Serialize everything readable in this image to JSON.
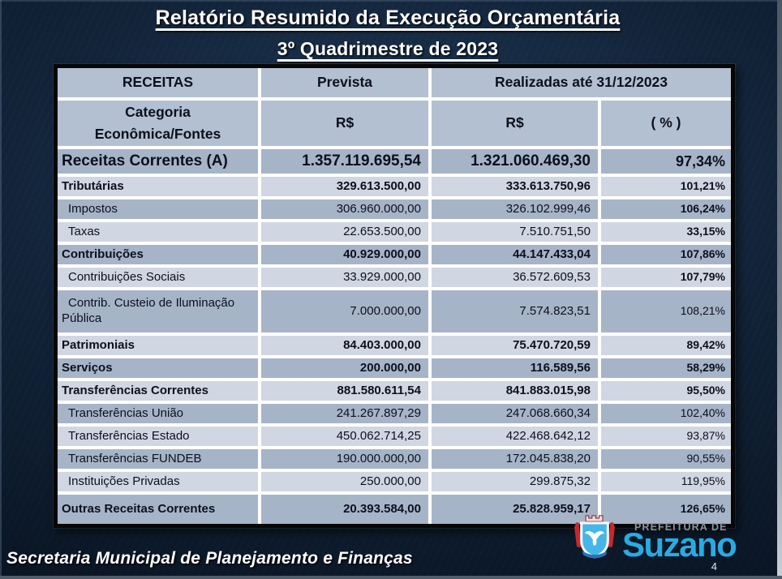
{
  "title": "Relatório Resumido da Execução Orçamentária",
  "subtitle": "3º Quadrimestre de 2023",
  "table": {
    "header": {
      "receitas": "RECEITAS",
      "prevista": "Prevista",
      "realizadas": "Realizadas até 31/12/2023",
      "categoria": "Categoria Econômica/Fontes",
      "rs_prevista": "R$",
      "rs_realizada": "R$",
      "pct": "( % )"
    },
    "rows": [
      {
        "label": "Receitas Correntes (A)",
        "prevista": "1.357.119.695,54",
        "realizada": "1.321.060.469,30",
        "pct": "97,34%",
        "style": "main",
        "pct_bold": true,
        "size": "xl"
      },
      {
        "label": "Tributárias",
        "prevista": "329.613.500,00",
        "realizada": "333.613.750,96",
        "pct": "101,21%",
        "style": "cat",
        "pct_bold": true,
        "size": "n"
      },
      {
        "label": "Impostos",
        "prevista": "306.960.000,00",
        "realizada": "326.102.999,46",
        "pct": "106,24%",
        "style": "sub",
        "pct_bold": true,
        "size": "n"
      },
      {
        "label": "Taxas",
        "prevista": "22.653.500,00",
        "realizada": "7.510.751,50",
        "pct": "33,15%",
        "style": "sub",
        "pct_bold": true,
        "size": "n"
      },
      {
        "label": "Contribuições",
        "prevista": "40.929.000,00",
        "realizada": "44.147.433,04",
        "pct": "107,86%",
        "style": "cat",
        "pct_bold": true,
        "size": "n"
      },
      {
        "label": "Contribuições Sociais",
        "prevista": "33.929.000,00",
        "realizada": "36.572.609,53",
        "pct": "107,79%",
        "style": "sub",
        "pct_bold": true,
        "size": "n"
      },
      {
        "label": "Contrib. Custeio de Iluminação Pública",
        "prevista": "7.000.000,00",
        "realizada": "7.574.823,51",
        "pct": "108,21%",
        "style": "sub",
        "pct_bold": false,
        "size": "t"
      },
      {
        "label": "Patrimoniais",
        "prevista": "84.403.000,00",
        "realizada": "75.470.720,59",
        "pct": "89,42%",
        "style": "cat",
        "pct_bold": true,
        "size": "n"
      },
      {
        "label": "Serviços",
        "prevista": "200.000,00",
        "realizada": "116.589,56",
        "pct": "58,29%",
        "style": "cat",
        "pct_bold": true,
        "size": "n"
      },
      {
        "label": "Transferências Correntes",
        "prevista": "881.580.611,54",
        "realizada": "841.883.015,98",
        "pct": "95,50%",
        "style": "cat",
        "pct_bold": true,
        "size": "n"
      },
      {
        "label": "Transferências União",
        "prevista": "241.267.897,29",
        "realizada": "247.068.660,34",
        "pct": "102,40%",
        "style": "sub",
        "pct_bold": false,
        "size": "n"
      },
      {
        "label": "Transferências Estado",
        "prevista": "450.062.714,25",
        "realizada": "422.468.642,12",
        "pct": "93,87%",
        "style": "sub",
        "pct_bold": false,
        "size": "n"
      },
      {
        "label": "Transferências FUNDEB",
        "prevista": "190.000.000,00",
        "realizada": "172.045.838,20",
        "pct": "90,55%",
        "style": "sub",
        "pct_bold": false,
        "size": "n"
      },
      {
        "label": "Instituições Privadas",
        "prevista": "250.000,00",
        "realizada": "299.875,32",
        "pct": "119,95%",
        "style": "sub",
        "pct_bold": false,
        "size": "n"
      },
      {
        "label": "Outras Receitas Correntes",
        "prevista": "20.393.584,00",
        "realizada": "25.828.959,17",
        "pct": "126,65%",
        "style": "cat",
        "pct_bold": true,
        "size": "t2"
      }
    ]
  },
  "footer": {
    "department": "Secretaria Municipal de Planejamento e Finanças",
    "logo_top": "PREFEITURA DE",
    "logo_name": "Suzano",
    "page_number": "4"
  },
  "colors": {
    "header_bg": "#b3c0d1",
    "row_dark": "#a6b4c8",
    "row_light": "#d0d7e2",
    "suzano_blue": "#29abe2",
    "logo_gray": "#8d939b"
  }
}
